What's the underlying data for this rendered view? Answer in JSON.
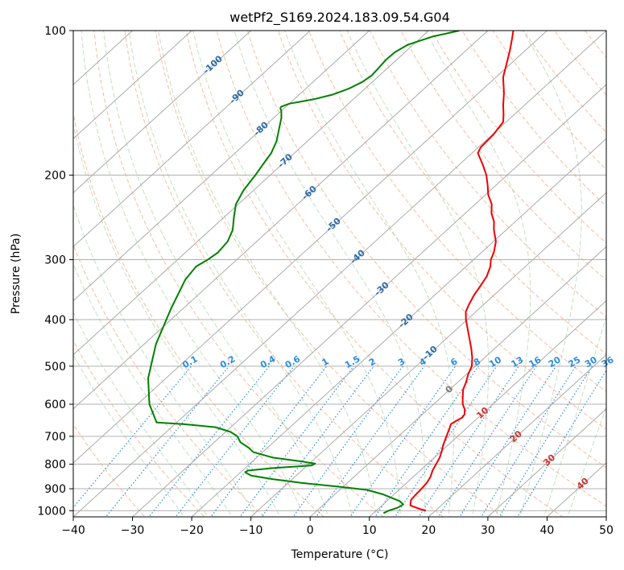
{
  "chart_data": {
    "type": "line",
    "subtype": "skew-t log-p",
    "title": "wetPf2_S169.2024.183.09.54.G04",
    "xlabel": "Temperature (°C)",
    "ylabel": "Pressure (hPa)",
    "xlim": [
      -40,
      50
    ],
    "ylim": [
      1030,
      100
    ],
    "y_scale": "log",
    "grid": true,
    "x_ticks": [
      -40,
      -30,
      -20,
      -10,
      0,
      10,
      20,
      30,
      40,
      50
    ],
    "x_tick_labels": [
      "−40",
      "−30",
      "−20",
      "−10",
      "0",
      "10",
      "20",
      "30",
      "40",
      "50"
    ],
    "y_ticks": [
      100,
      200,
      300,
      400,
      500,
      600,
      700,
      800,
      900,
      1000
    ],
    "y_tick_labels": [
      "100",
      "200",
      "300",
      "400",
      "500",
      "600",
      "700",
      "800",
      "900",
      "1000"
    ],
    "isotherm_labels": [
      {
        "text": "-100",
        "t": -100
      },
      {
        "text": "-90",
        "t": -90
      },
      {
        "text": "-80",
        "t": -80
      },
      {
        "text": "-70",
        "t": -70
      },
      {
        "text": "-60",
        "t": -60
      },
      {
        "text": "-50",
        "t": -50
      },
      {
        "text": "-40",
        "t": -40
      },
      {
        "text": "-30",
        "t": -30
      },
      {
        "text": "-20",
        "t": -20
      },
      {
        "text": "-10",
        "t": -10
      },
      {
        "text": "0",
        "t": 0
      },
      {
        "text": "10",
        "t": 10
      },
      {
        "text": "20",
        "t": 20
      },
      {
        "text": "30",
        "t": 30
      },
      {
        "text": "40",
        "t": 40
      }
    ],
    "mixing_ratio_labels": [
      "0.1",
      "0.2",
      "0.4",
      "0.6",
      "1",
      "1.5",
      "2",
      "3",
      "4",
      "6",
      "8",
      "10",
      "13",
      "16",
      "20",
      "25",
      "30",
      "36"
    ],
    "mixing_ratio_values": [
      0.1,
      0.2,
      0.4,
      0.6,
      1,
      1.5,
      2,
      3,
      4,
      6,
      8,
      10,
      13,
      16,
      20,
      25,
      30,
      36
    ],
    "series": [
      {
        "name": "temperature",
        "color": "#ee0000",
        "points": [
          [
            1000,
            18.4
          ],
          [
            990,
            16.8
          ],
          [
            975,
            14.8
          ],
          [
            950,
            13.9
          ],
          [
            925,
            13.7
          ],
          [
            900,
            13.6
          ],
          [
            875,
            13.4
          ],
          [
            850,
            12.9
          ],
          [
            825,
            12.1
          ],
          [
            800,
            11.5
          ],
          [
            775,
            10.9
          ],
          [
            750,
            10.0
          ],
          [
            725,
            9.0
          ],
          [
            700,
            8.1
          ],
          [
            675,
            7.2
          ],
          [
            660,
            6.6
          ],
          [
            650,
            6.9
          ],
          [
            640,
            7.3
          ],
          [
            630,
            7.1
          ],
          [
            615,
            6.2
          ],
          [
            600,
            4.9
          ],
          [
            580,
            3.6
          ],
          [
            560,
            2.3
          ],
          [
            540,
            1.4
          ],
          [
            520,
            0.3
          ],
          [
            500,
            -0.6
          ],
          [
            480,
            -2.1
          ],
          [
            460,
            -3.9
          ],
          [
            440,
            -5.9
          ],
          [
            420,
            -8.0
          ],
          [
            400,
            -10.2
          ],
          [
            385,
            -11.7
          ],
          [
            370,
            -12.6
          ],
          [
            355,
            -13.4
          ],
          [
            340,
            -14.0
          ],
          [
            325,
            -14.7
          ],
          [
            310,
            -15.9
          ],
          [
            300,
            -17.1
          ],
          [
            290,
            -17.9
          ],
          [
            275,
            -19.6
          ],
          [
            260,
            -22.1
          ],
          [
            250,
            -23.6
          ],
          [
            240,
            -25.6
          ],
          [
            230,
            -27.2
          ],
          [
            220,
            -29.5
          ],
          [
            210,
            -31.4
          ],
          [
            200,
            -33.5
          ],
          [
            190,
            -36.1
          ],
          [
            180,
            -39.0
          ],
          [
            175,
            -39.6
          ],
          [
            165,
            -39.8
          ],
          [
            155,
            -40.5
          ],
          [
            150,
            -41.7
          ],
          [
            143,
            -43.6
          ],
          [
            135,
            -45.7
          ],
          [
            125,
            -48.8
          ],
          [
            118,
            -50.5
          ],
          [
            110,
            -52.6
          ],
          [
            104,
            -54.4
          ],
          [
            100,
            -55.7
          ]
        ]
      },
      {
        "name": "dewpoint",
        "color": "#008000",
        "points": [
          [
            1012,
            11.7
          ],
          [
            1000,
            12.1
          ],
          [
            985,
            13.1
          ],
          [
            970,
            13.4
          ],
          [
            955,
            12.2
          ],
          [
            940,
            10.2
          ],
          [
            925,
            8.2
          ],
          [
            905,
            4.6
          ],
          [
            890,
            -1.3
          ],
          [
            875,
            -7.8
          ],
          [
            860,
            -13.2
          ],
          [
            845,
            -17.6
          ],
          [
            832,
            -19.2
          ],
          [
            825,
            -19.1
          ],
          [
            815,
            -15.3
          ],
          [
            805,
            -9.3
          ],
          [
            798,
            -9.0
          ],
          [
            790,
            -11.6
          ],
          [
            775,
            -17.3
          ],
          [
            755,
            -21.6
          ],
          [
            740,
            -23.1
          ],
          [
            720,
            -25.6
          ],
          [
            700,
            -27.2
          ],
          [
            685,
            -29.2
          ],
          [
            670,
            -32.6
          ],
          [
            660,
            -38.7
          ],
          [
            655,
            -43.4
          ],
          [
            600,
            -48
          ],
          [
            530,
            -53
          ],
          [
            450,
            -58
          ],
          [
            380,
            -62
          ],
          [
            330,
            -65
          ],
          [
            310,
            -65.6
          ],
          [
            300,
            -64.9
          ],
          [
            290,
            -64.5
          ],
          [
            275,
            -64.9
          ],
          [
            260,
            -66.2
          ],
          [
            245,
            -68.3
          ],
          [
            230,
            -70.4
          ],
          [
            215,
            -71.7
          ],
          [
            200,
            -72.5
          ],
          [
            190,
            -73.2
          ],
          [
            180,
            -73.9
          ],
          [
            170,
            -75.2
          ],
          [
            160,
            -77.1
          ],
          [
            152,
            -78.7
          ],
          [
            147,
            -80.0
          ],
          [
            145,
            -80.7
          ],
          [
            144,
            -80.8
          ],
          [
            142,
            -80.0
          ],
          [
            139,
            -76.7
          ],
          [
            136,
            -74.4
          ],
          [
            132,
            -72.7
          ],
          [
            128,
            -71.7
          ],
          [
            124,
            -71.3
          ],
          [
            120,
            -71.5
          ],
          [
            115,
            -71.8
          ],
          [
            111,
            -71.7
          ],
          [
            107,
            -70.9
          ],
          [
            103,
            -68.3
          ],
          [
            100,
            -64.8
          ]
        ]
      }
    ]
  }
}
